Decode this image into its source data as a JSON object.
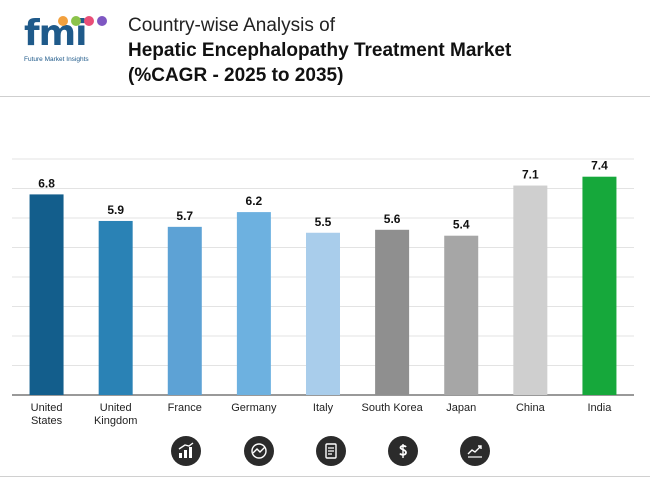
{
  "brand": {
    "logo_text": "fmi",
    "tagline": "Future Market Insights",
    "dot_colors": [
      "#f2a03d",
      "#8bc34a",
      "#e94e77",
      "#7e57c2"
    ]
  },
  "header": {
    "line1": "Country-wise Analysis of",
    "line2": "Hepatic Encephalopathy Treatment Market",
    "line3": "(%CAGR - 2025 to 2035)"
  },
  "chart_data": {
    "type": "bar",
    "title": "Country-wise Analysis of Hepatic Encephalopathy Treatment Market (%CAGR - 2025 to 2035)",
    "categories": [
      [
        "United",
        "States"
      ],
      [
        "United",
        "Kingdom"
      ],
      [
        "France"
      ],
      [
        "Germany"
      ],
      [
        "Italy"
      ],
      [
        "South Korea"
      ],
      [
        "Japan"
      ],
      [
        "China"
      ],
      [
        "India"
      ]
    ],
    "values": [
      6.8,
      5.9,
      5.7,
      6.2,
      5.5,
      5.6,
      5.4,
      7.1,
      7.4
    ],
    "value_labels": [
      "6.8",
      "5.9",
      "5.7",
      "6.2",
      "5.5",
      "5.6",
      "5.4",
      "7.1",
      "7.4"
    ],
    "colors": [
      "#135e8c",
      "#2a82b5",
      "#5da2d5",
      "#6db1e0",
      "#a9cdeb",
      "#8f8f8f",
      "#a6a6a6",
      "#cfcfcf",
      "#16a83b"
    ],
    "ylim": [
      0,
      8
    ],
    "grid": true,
    "xlabel": "",
    "ylabel": ""
  },
  "icons": [
    "bar-growth-icon",
    "target-chart-icon",
    "document-icon",
    "dollar-icon",
    "trend-line-icon"
  ]
}
